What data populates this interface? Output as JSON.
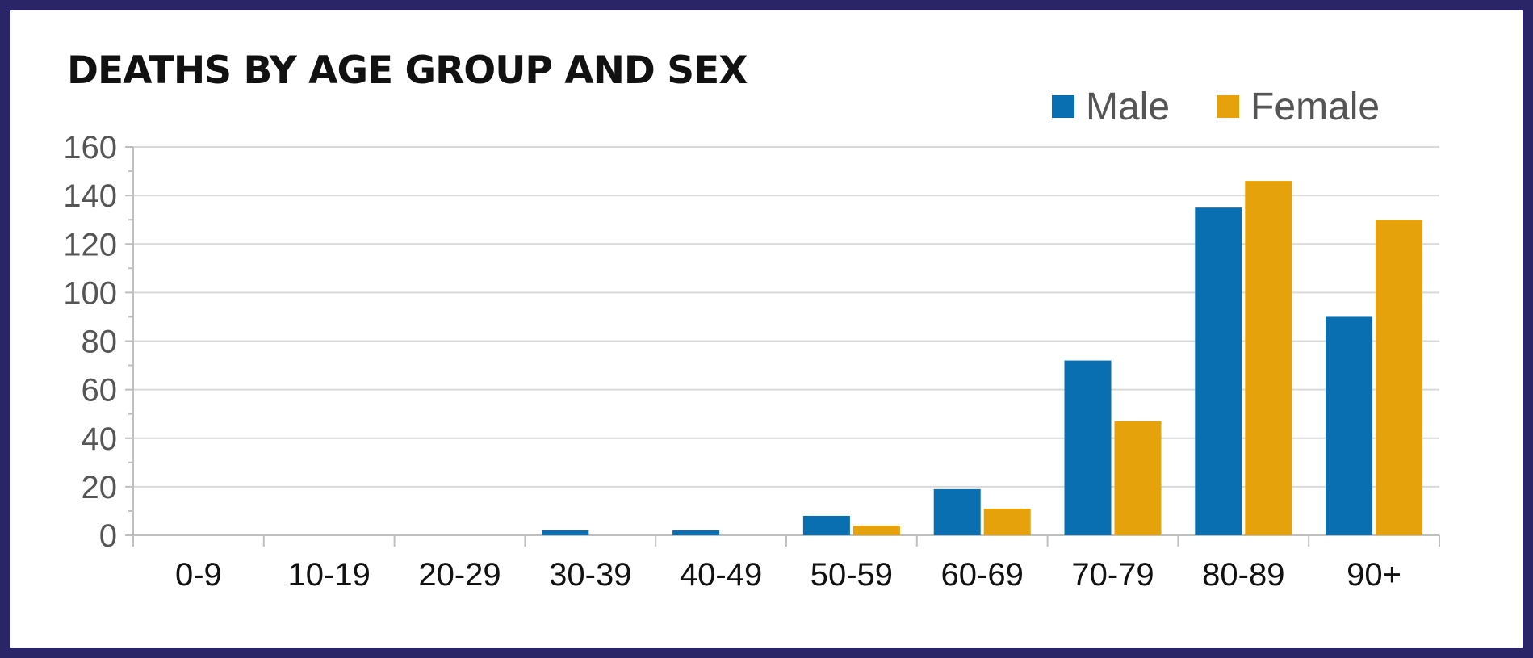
{
  "chart_data": {
    "type": "bar",
    "title": "DEATHS BY AGE GROUP AND SEX",
    "xlabel": "",
    "ylabel": "",
    "categories": [
      "0-9",
      "10-19",
      "20-29",
      "30-39",
      "40-49",
      "50-59",
      "60-69",
      "70-79",
      "80-89",
      "90+"
    ],
    "series": [
      {
        "name": "Male",
        "color": "#0a6fb0",
        "values": [
          0,
          0,
          0,
          2,
          2,
          8,
          19,
          72,
          135,
          90
        ]
      },
      {
        "name": "Female",
        "color": "#e6a20a",
        "values": [
          0,
          0,
          0,
          0,
          0,
          4,
          11,
          47,
          146,
          130
        ]
      }
    ],
    "ylim": [
      0,
      160
    ],
    "yticks": [
      0,
      20,
      40,
      60,
      80,
      100,
      120,
      140,
      160
    ],
    "grid": true,
    "legend_position": "top-right"
  }
}
